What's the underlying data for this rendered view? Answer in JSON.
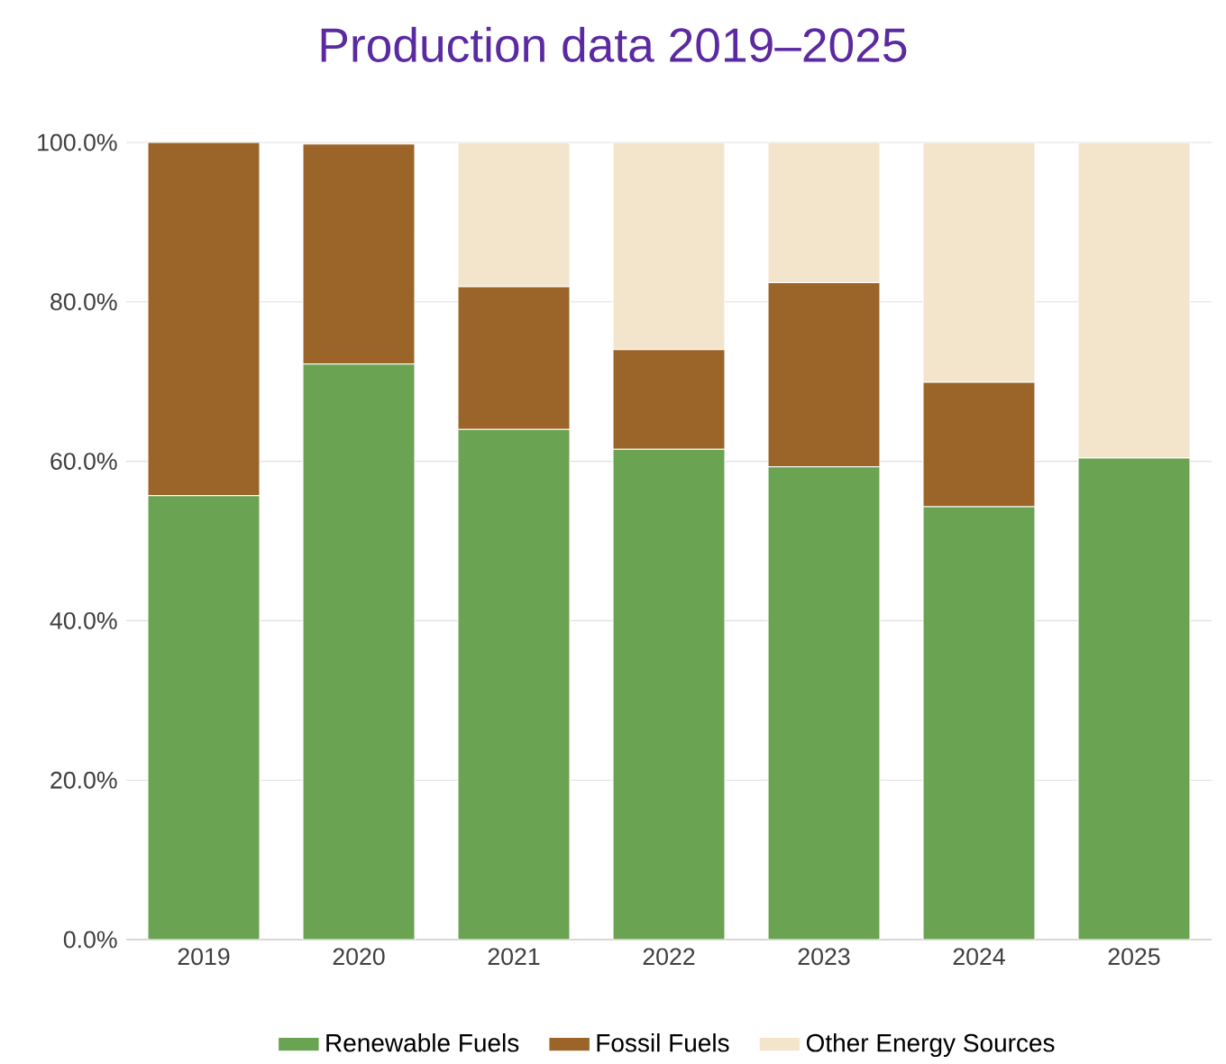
{
  "chart_data": {
    "type": "bar",
    "title": "Production data 2019–2025",
    "stacked": true,
    "categories": [
      "2019",
      "2020",
      "2021",
      "2022",
      "2023",
      "2024",
      "2025"
    ],
    "series": [
      {
        "name": "Renewable Fuels",
        "color": "#6aa352",
        "values": [
          55.7,
          72.2,
          64.0,
          61.5,
          59.3,
          54.3,
          60.4
        ]
      },
      {
        "name": "Fossil Fuels",
        "color": "#9b6428",
        "values": [
          44.3,
          27.6,
          17.9,
          12.5,
          23.1,
          15.6,
          0
        ]
      },
      {
        "name": "Other Energy Sources",
        "color": "#f3e4cc",
        "values": [
          0,
          null,
          18.1,
          26.0,
          17.6,
          30.1,
          39.6
        ]
      }
    ],
    "ylim": [
      0,
      100
    ],
    "yticks": [
      {
        "value": 0,
        "label": "0.0%"
      },
      {
        "value": 20,
        "label": "20.0%"
      },
      {
        "value": 40,
        "label": "40.0%"
      },
      {
        "value": 60,
        "label": "60.0%"
      },
      {
        "value": 80,
        "label": "80.0%"
      },
      {
        "value": 100,
        "label": "100.0%"
      }
    ],
    "grid": "y",
    "legend": "bottom"
  }
}
